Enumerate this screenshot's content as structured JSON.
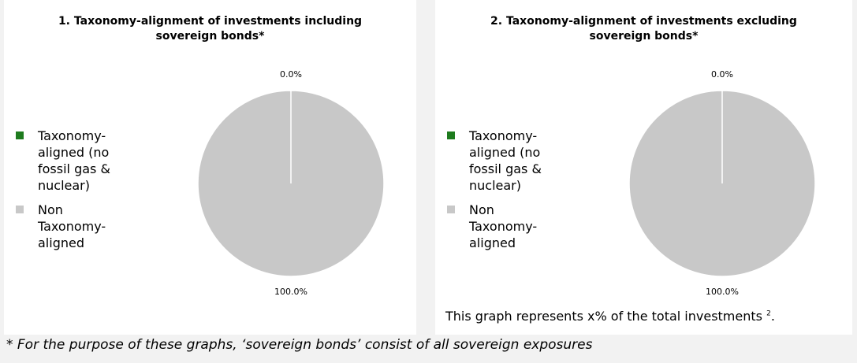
{
  "chart_data": [
    {
      "type": "pie",
      "title": "1. Taxonomy-alignment of investments including sovereign bonds*",
      "categories": [
        "Taxonomy-aligned (no fossil gas & nuclear)",
        "Non Taxonomy-aligned"
      ],
      "values": [
        0,
        100
      ],
      "value_labels": [
        "0.0%",
        "100.0%"
      ],
      "colors": [
        "#1e7b1e",
        "#c8c8c8"
      ]
    },
    {
      "type": "pie",
      "title": "2. Taxonomy-alignment of investments excluding sovereign bonds*",
      "categories": [
        "Taxonomy-aligned (no fossil gas & nuclear)",
        "Non Taxonomy-aligned"
      ],
      "values": [
        0,
        100
      ],
      "value_labels": [
        "0.0%",
        "100.0%"
      ],
      "colors": [
        "#1e7b1e",
        "#c8c8c8"
      ]
    }
  ],
  "note": {
    "text": "This graph represents x% of the total investments ",
    "superscript": "2",
    "end": "."
  },
  "footnote": "* For the purpose of these graphs, ‘sovereign bonds’ consist of all sovereign exposures"
}
